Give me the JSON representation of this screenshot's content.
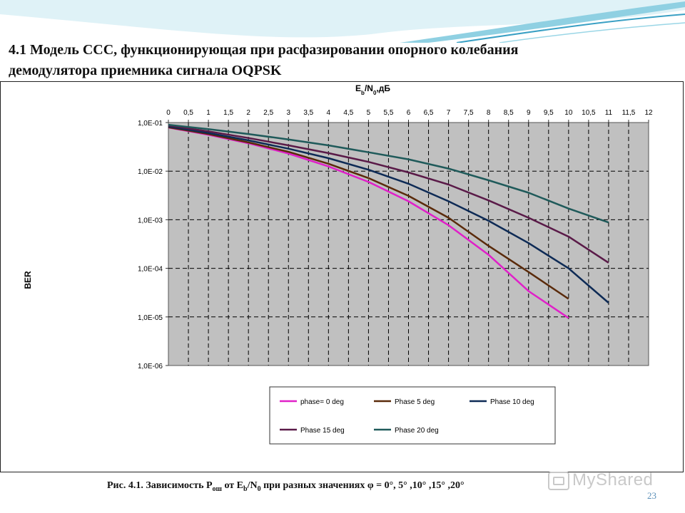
{
  "slide": {
    "title_line1": "4.1 Модель ССС, функционирующая при расфазировании опорного колебания",
    "title_line2": "демодулятора приемника сигнала OQPSK",
    "caption_prefix": "Рис. 4.1. Зависимость P",
    "caption_sub1": "ош",
    "caption_mid": " от E",
    "caption_sub2": "b",
    "caption_mid2": "/N",
    "caption_sub3": "0",
    "caption_suffix": " при разных значениях φ = 0°, 5° ,10° ,15° ,20°",
    "page_number": "23",
    "watermark": "MyShared"
  },
  "colors": {
    "plot_bg": "#c0c0c0",
    "header_wave_1": "#bfe6f0",
    "header_wave_2": "#79c6dc"
  },
  "chart_data": {
    "type": "line",
    "title": "",
    "xlabel_main": "E",
    "xlabel_sub1": "b",
    "xlabel_mid": "/N",
    "xlabel_sub2": "0",
    "xlabel_suffix": ",дБ",
    "ylabel": "BER",
    "x_axis_position": "top",
    "y_scale": "log",
    "xlim": [
      0,
      12
    ],
    "ylim": [
      1e-06,
      0.1
    ],
    "x_ticks": [
      0,
      0.5,
      1,
      1.5,
      2,
      2.5,
      3,
      3.5,
      4,
      4.5,
      5,
      5.5,
      6,
      6.5,
      7,
      7.5,
      8,
      8.5,
      9,
      9.5,
      10,
      10.5,
      11,
      11.5,
      12
    ],
    "x_tick_labels": [
      "0",
      "0,5",
      "1",
      "1,5",
      "2",
      "2,5",
      "3",
      "3,5",
      "4",
      "4,5",
      "5",
      "5,5",
      "6",
      "6,5",
      "7",
      "7,5",
      "8",
      "8,5",
      "9",
      "9,5",
      "10",
      "10,5",
      "11",
      "11,5",
      "12"
    ],
    "y_ticks": [
      0.1,
      0.01,
      0.001,
      0.0001,
      1e-05,
      1e-06
    ],
    "y_tick_labels": [
      "1,0E-01",
      "1,0E-02",
      "1,0E-03",
      "1,0E-04",
      "1,0E-05",
      "1,0E-06"
    ],
    "grid": true,
    "legend_position": "bottom",
    "series": [
      {
        "name": "phase= 0 deg",
        "color": "#e020c8",
        "x": [
          0,
          1,
          2,
          3,
          4,
          5,
          6,
          7,
          8,
          9,
          10
        ],
        "y": [
          0.079,
          0.056,
          0.0375,
          0.023,
          0.0125,
          0.006,
          0.0024,
          0.00077,
          0.00019,
          3.4e-05,
          9.5e-06
        ]
      },
      {
        "name": "Phase 5 deg",
        "color": "#5a2a0a",
        "x": [
          0,
          1,
          2,
          3,
          4,
          5,
          6,
          7,
          8,
          9,
          10
        ],
        "y": [
          0.08,
          0.058,
          0.039,
          0.025,
          0.0142,
          0.0072,
          0.0031,
          0.0011,
          0.00029,
          8.4e-05,
          2.35e-05
        ]
      },
      {
        "name": "Phase 10 deg",
        "color": "#0d2a55",
        "x": [
          0,
          1,
          2,
          3,
          4,
          5,
          6,
          7,
          8,
          9,
          10,
          11
        ],
        "y": [
          0.083,
          0.061,
          0.043,
          0.029,
          0.0185,
          0.0107,
          0.0055,
          0.0024,
          0.00095,
          0.00033,
          0.0001,
          1.95e-05
        ]
      },
      {
        "name": "Phase 15 deg",
        "color": "#5a1a48",
        "x": [
          0,
          1,
          2,
          3,
          4,
          5,
          6,
          7,
          8,
          9,
          10,
          11
        ],
        "y": [
          0.087,
          0.066,
          0.048,
          0.034,
          0.0235,
          0.0155,
          0.0094,
          0.0053,
          0.0025,
          0.0011,
          0.00045,
          0.00013
        ]
      },
      {
        "name": "Phase 20 deg",
        "color": "#1f5a5a",
        "x": [
          0,
          1,
          2,
          3,
          4,
          5,
          6,
          7,
          8,
          9,
          10,
          11
        ],
        "y": [
          0.09,
          0.073,
          0.058,
          0.045,
          0.034,
          0.0245,
          0.0175,
          0.0113,
          0.0065,
          0.0036,
          0.0017,
          0.00088
        ]
      }
    ]
  }
}
